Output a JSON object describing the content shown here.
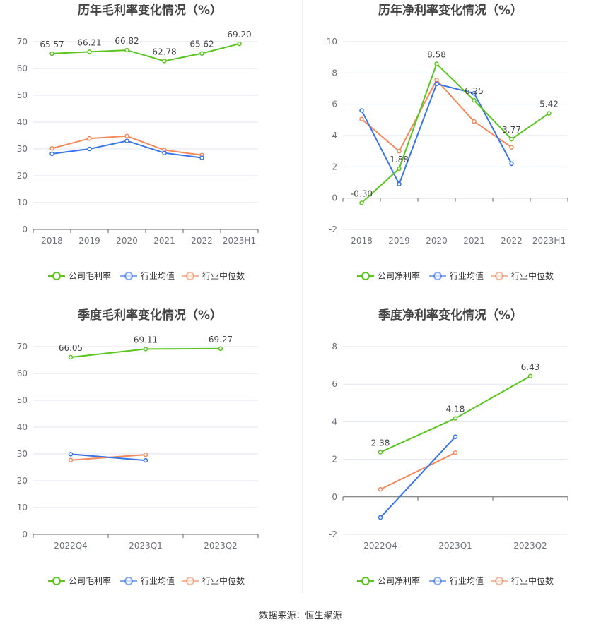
{
  "source": "数据来源：恒生聚源",
  "colors": {
    "company": "#5ac421",
    "avg": "#3875e8",
    "median": "#f5895c"
  },
  "chart_data": [
    {
      "type": "line",
      "title": "历年毛利率变化情况（%）",
      "categories": [
        "2018",
        "2019",
        "2020",
        "2021",
        "2022",
        "2023H1"
      ],
      "ylim": [
        0,
        70
      ],
      "yticks": [
        0,
        10,
        20,
        30,
        40,
        50,
        60,
        70
      ],
      "grid": true,
      "legend": "bottom",
      "series": [
        {
          "name": "公司毛利率",
          "values": [
            65.57,
            66.21,
            66.82,
            62.78,
            65.62,
            69.2
          ],
          "labels": true
        },
        {
          "name": "行业均值",
          "values": [
            28.2,
            30.0,
            33.0,
            28.5,
            26.7,
            null
          ]
        },
        {
          "name": "行业中位数",
          "values": [
            30.2,
            33.9,
            34.8,
            29.6,
            27.7,
            null
          ]
        }
      ]
    },
    {
      "type": "line",
      "title": "历年净利率变化情况（%）",
      "categories": [
        "2018",
        "2019",
        "2020",
        "2021",
        "2022",
        "2023H1"
      ],
      "ylim": [
        -2,
        10
      ],
      "yticks": [
        -2,
        0,
        2,
        4,
        6,
        8,
        10
      ],
      "grid": true,
      "legend": "bottom",
      "series": [
        {
          "name": "公司净利率",
          "values": [
            -0.3,
            1.88,
            8.58,
            6.25,
            3.77,
            5.42
          ],
          "labels": true
        },
        {
          "name": "行业均值",
          "values": [
            5.6,
            0.9,
            7.3,
            6.7,
            2.2,
            null
          ]
        },
        {
          "name": "行业中位数",
          "values": [
            5.05,
            3.0,
            7.55,
            4.9,
            3.25,
            null
          ]
        }
      ]
    },
    {
      "type": "line",
      "title": "季度毛利率变化情况（%）",
      "categories": [
        "2022Q4",
        "2023Q1",
        "2023Q2"
      ],
      "ylim": [
        0,
        70
      ],
      "yticks": [
        0,
        10,
        20,
        30,
        40,
        50,
        60,
        70
      ],
      "grid": true,
      "legend": "bottom",
      "series": [
        {
          "name": "公司毛利率",
          "values": [
            66.05,
            69.11,
            69.27
          ],
          "labels": true
        },
        {
          "name": "行业均值",
          "values": [
            29.9,
            27.6,
            null
          ]
        },
        {
          "name": "行业中位数",
          "values": [
            27.7,
            29.7,
            null
          ]
        }
      ]
    },
    {
      "type": "line",
      "title": "季度净利率变化情况（%）",
      "categories": [
        "2022Q4",
        "2023Q1",
        "2023Q2"
      ],
      "ylim": [
        -2,
        8
      ],
      "yticks": [
        -2,
        0,
        2,
        4,
        6,
        8
      ],
      "grid": true,
      "legend": "bottom",
      "series": [
        {
          "name": "公司净利率",
          "values": [
            2.38,
            4.18,
            6.43
          ],
          "labels": true
        },
        {
          "name": "行业均值",
          "values": [
            -1.1,
            3.2,
            null
          ]
        },
        {
          "name": "行业中位数",
          "values": [
            0.4,
            2.35,
            null
          ]
        }
      ]
    }
  ]
}
